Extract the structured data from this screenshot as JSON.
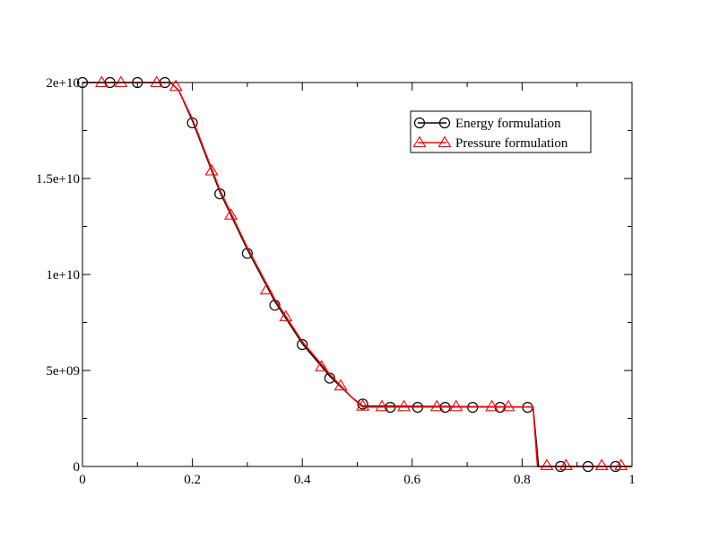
{
  "chart_data": {
    "type": "line",
    "title": "",
    "xlabel": "",
    "ylabel": "",
    "xlim": [
      0,
      1
    ],
    "ylim": [
      0,
      20000000000
    ],
    "x_ticks": [
      {
        "value": 0,
        "label": "0"
      },
      {
        "value": 0.2,
        "label": "0.2"
      },
      {
        "value": 0.4,
        "label": "0.4"
      },
      {
        "value": 0.6,
        "label": "0.6"
      },
      {
        "value": 0.8,
        "label": "0.8"
      },
      {
        "value": 1,
        "label": "1"
      }
    ],
    "y_ticks": [
      {
        "value": 0,
        "label": "0"
      },
      {
        "value": 5000000000,
        "label": "5e+09"
      },
      {
        "value": 10000000000,
        "label": "1e+10"
      },
      {
        "value": 15000000000,
        "label": "1.5e+10"
      },
      {
        "value": 20000000000,
        "label": "2e+10"
      }
    ],
    "grid": false,
    "legend_position": "top-right",
    "series": [
      {
        "name": "Energy formulation",
        "color": "#000000",
        "marker": "circle",
        "line": [
          [
            0,
            20000000000
          ],
          [
            0.16,
            20000000000
          ],
          [
            0.175,
            19600000000
          ],
          [
            0.2,
            18000000000
          ],
          [
            0.25,
            14300000000
          ],
          [
            0.3,
            11300000000
          ],
          [
            0.35,
            8600000000
          ],
          [
            0.4,
            6400000000
          ],
          [
            0.45,
            4700000000
          ],
          [
            0.49,
            3600000000
          ],
          [
            0.51,
            3150000000
          ],
          [
            0.82,
            3100000000
          ],
          [
            0.83,
            0
          ],
          [
            1,
            0
          ]
        ],
        "points": [
          [
            0,
            20000000000
          ],
          [
            0.05,
            20000000000
          ],
          [
            0.1,
            20000000000
          ],
          [
            0.15,
            20000000000
          ],
          [
            0.2,
            17900000000
          ],
          [
            0.25,
            14200000000
          ],
          [
            0.3,
            11100000000
          ],
          [
            0.35,
            8400000000
          ],
          [
            0.4,
            6350000000
          ],
          [
            0.45,
            4600000000
          ],
          [
            0.51,
            3250000000
          ],
          [
            0.56,
            3080000000
          ],
          [
            0.61,
            3080000000
          ],
          [
            0.66,
            3080000000
          ],
          [
            0.71,
            3080000000
          ],
          [
            0.76,
            3080000000
          ],
          [
            0.81,
            3080000000
          ],
          [
            0.87,
            0
          ],
          [
            0.92,
            0
          ],
          [
            0.97,
            0
          ]
        ]
      },
      {
        "name": "Pressure formulation",
        "color": "#ff0000",
        "marker": "triangle",
        "line": [
          [
            0,
            20000000000
          ],
          [
            0.16,
            20000000000
          ],
          [
            0.175,
            19600000000
          ],
          [
            0.2,
            18100000000
          ],
          [
            0.25,
            14400000000
          ],
          [
            0.3,
            11400000000
          ],
          [
            0.35,
            8700000000
          ],
          [
            0.4,
            6500000000
          ],
          [
            0.45,
            4800000000
          ],
          [
            0.49,
            3600000000
          ],
          [
            0.51,
            3100000000
          ],
          [
            0.82,
            3100000000
          ],
          [
            0.828,
            0
          ],
          [
            1,
            0
          ]
        ],
        "points": [
          [
            0.035,
            20000000000
          ],
          [
            0.07,
            20000000000
          ],
          [
            0.135,
            20000000000
          ],
          [
            0.17,
            19800000000
          ],
          [
            0.235,
            15400000000
          ],
          [
            0.27,
            13100000000
          ],
          [
            0.335,
            9200000000
          ],
          [
            0.37,
            7800000000
          ],
          [
            0.435,
            5200000000
          ],
          [
            0.47,
            4200000000
          ],
          [
            0.51,
            3150000000
          ],
          [
            0.545,
            3120000000
          ],
          [
            0.585,
            3120000000
          ],
          [
            0.645,
            3120000000
          ],
          [
            0.68,
            3120000000
          ],
          [
            0.745,
            3120000000
          ],
          [
            0.775,
            3120000000
          ],
          [
            0.845,
            50000000
          ],
          [
            0.88,
            50000000
          ],
          [
            0.945,
            50000000
          ],
          [
            0.98,
            50000000
          ]
        ]
      }
    ]
  }
}
